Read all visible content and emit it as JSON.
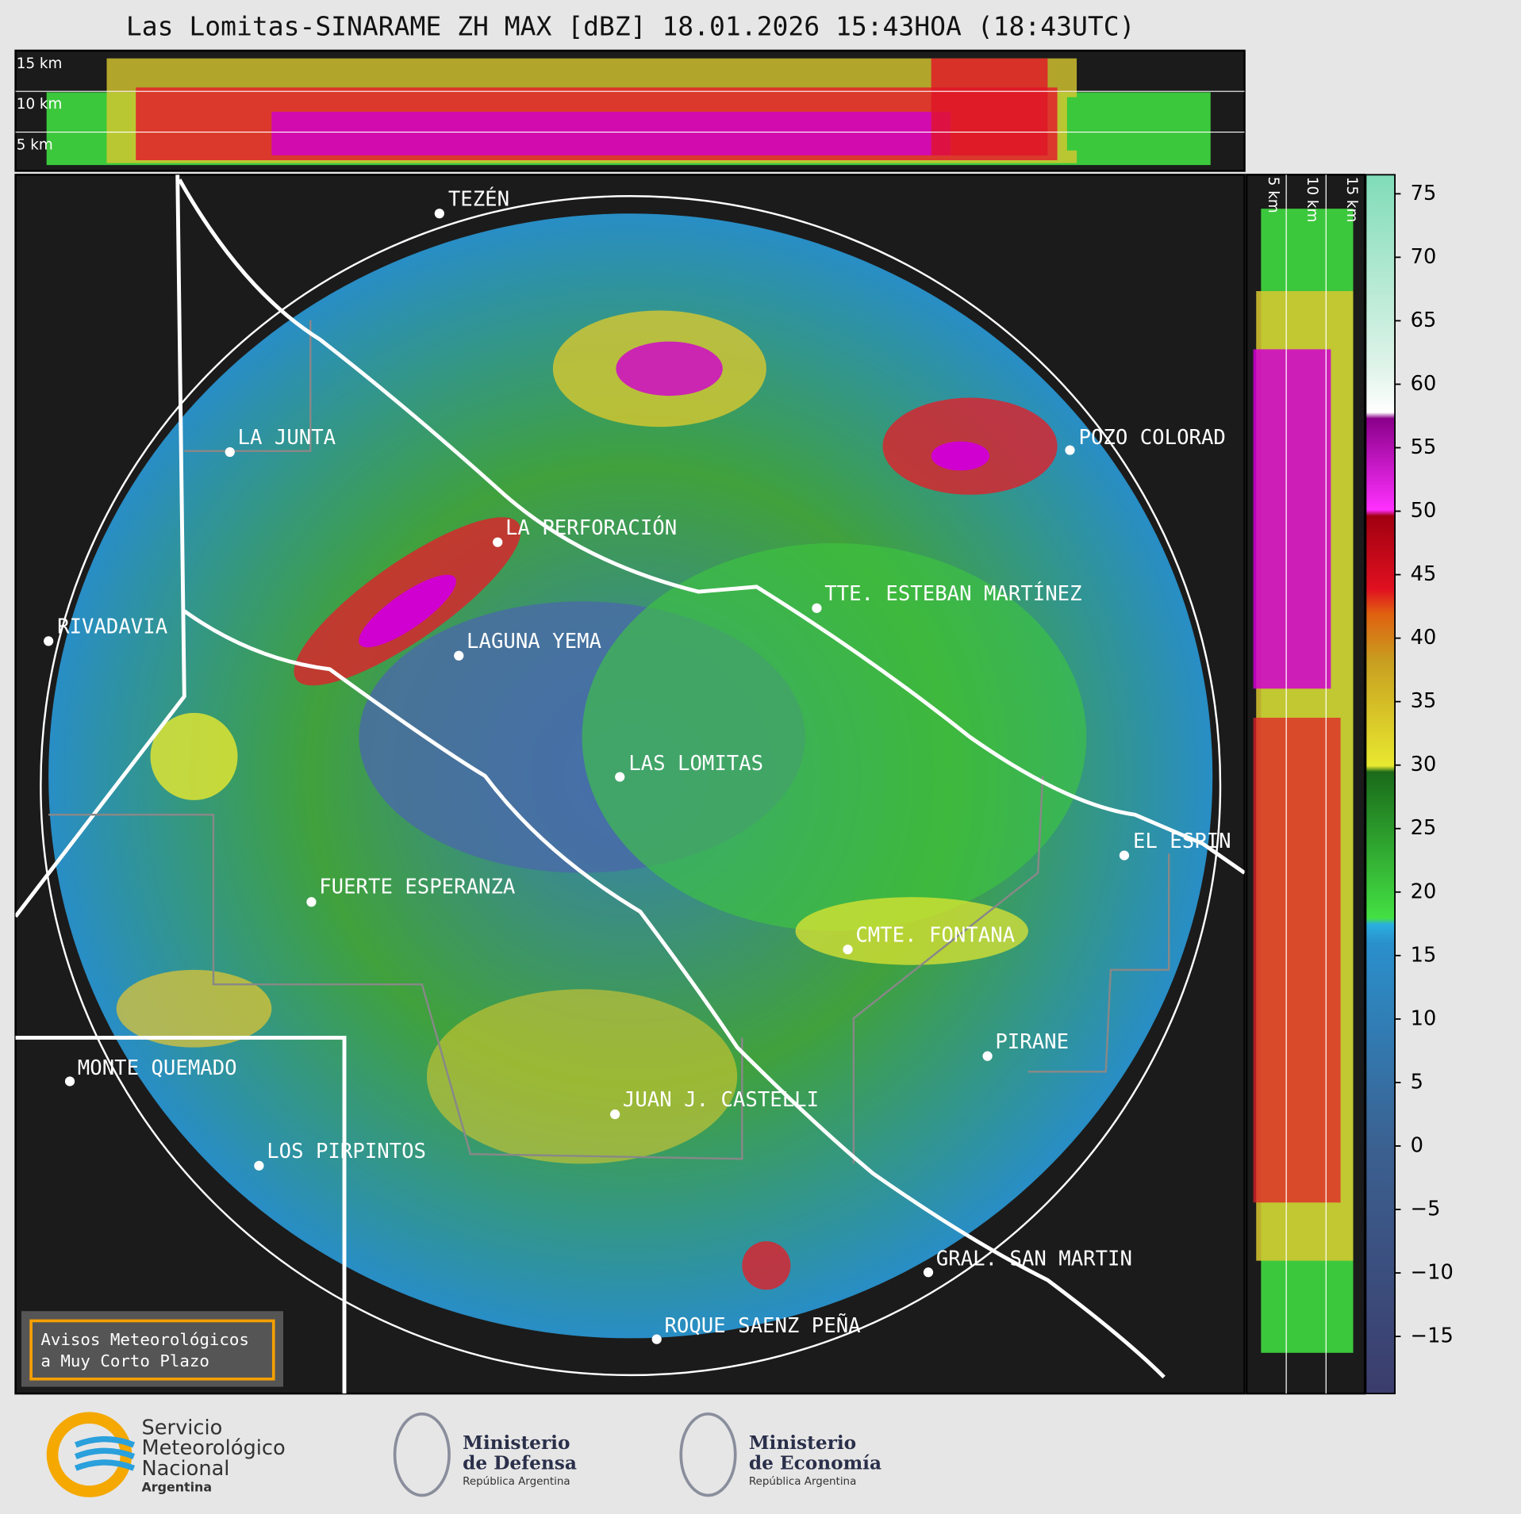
{
  "title": "Las Lomitas-SINARAME ZH MAX [dBZ] 18.01.2026 15:43HOA (18:43UTC)",
  "top_panel": {
    "height_labels": [
      "15 km",
      "10 km",
      "5 km"
    ]
  },
  "side_panel": {
    "height_labels": [
      "5 km",
      "10 km",
      "15 km"
    ]
  },
  "map": {
    "places": [
      "TEZÉN",
      "LA JUNTA",
      "POZO COLORAD",
      "LA PERFORACIÓN",
      "TTE. ESTEBAN MARTÍNEZ",
      "RIVADAVIA",
      "LAGUNA YEMA",
      "LAS LOMITAS",
      "EL ESPIN",
      "FUERTE ESPERANZA",
      "CMTE. FONTANA",
      "PIRANE",
      "MONTE QUEMADO",
      "JUAN J. CASTELLI",
      "LOS PIRPINTOS",
      "GRAL. SAN MARTIN",
      "ROQUE SAENZ PEÑA"
    ]
  },
  "colorbar": {
    "lim": [
      -19.5,
      76.5
    ],
    "ticks": [
      75,
      70,
      65,
      60,
      55,
      50,
      45,
      40,
      35,
      30,
      25,
      20,
      15,
      10,
      5,
      0,
      {
        "value": -5,
        "label": "−5"
      },
      {
        "value": -10,
        "label": "−10"
      },
      {
        "value": -15,
        "label": "−15"
      }
    ]
  },
  "notice": [
    "Avisos Meteorológicos",
    "a Muy Corto Plazo"
  ],
  "logos": {
    "smn": [
      "Servicio",
      "Meteorológico",
      "Nacional",
      "Argentina"
    ],
    "defensa": [
      "Ministerio",
      "de Defensa",
      "República Argentina"
    ],
    "economia": [
      "Ministerio",
      "de Economía",
      "República Argentina"
    ]
  }
}
